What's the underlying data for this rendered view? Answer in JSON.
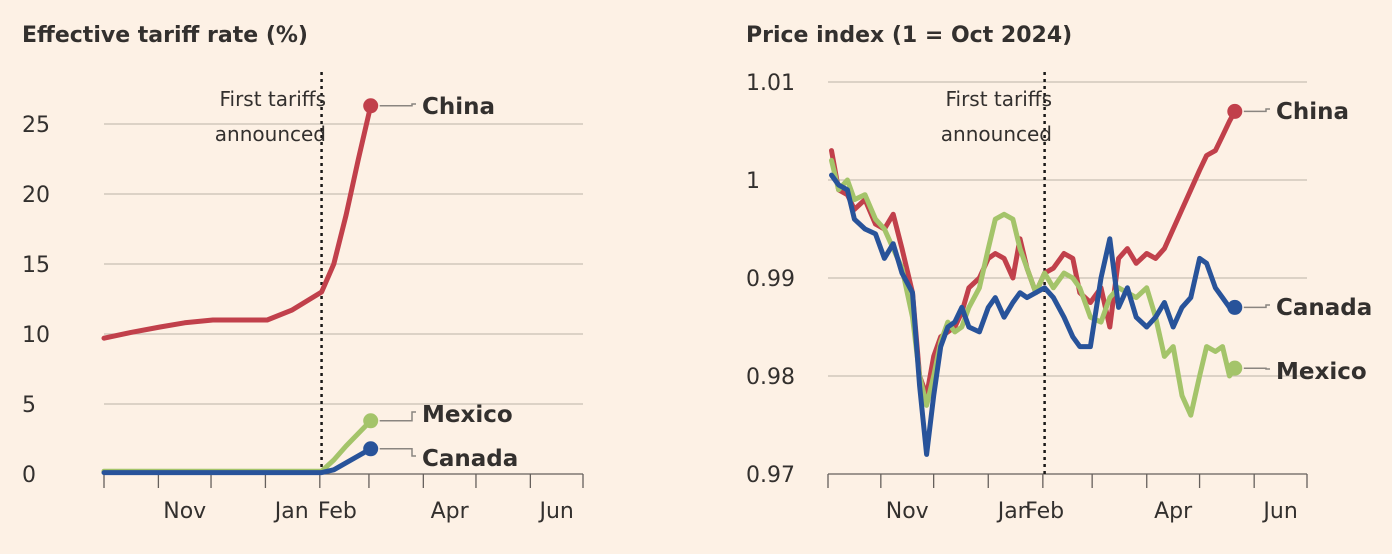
{
  "charts": {
    "left": {
      "title": "Effective tariff rate (%)",
      "annotation": [
        "First tariffs",
        "announced"
      ],
      "y_ticks": [
        "0",
        "5",
        "10",
        "15",
        "20",
        "25"
      ],
      "x_ticks": [
        "Nov",
        "Jan",
        "Feb",
        "Apr",
        "Jun"
      ]
    },
    "right": {
      "title": "Price index (1 = Oct 2024)",
      "annotation": [
        "First tariffs",
        "announced"
      ],
      "y_ticks": [
        "0.97",
        "0.98",
        "0.99",
        "1",
        "1.01"
      ],
      "x_ticks": [
        "Nov",
        "Jan",
        "Feb",
        "Apr",
        "Jun"
      ]
    }
  },
  "series_labels": {
    "china": "China",
    "mexico": "Mexico",
    "canada": "Canada"
  },
  "colors": {
    "china": "#c1404b",
    "mexico": "#a4c46a",
    "canada": "#28539a",
    "background": "#fdf1e5"
  },
  "chart_data": [
    {
      "type": "line",
      "title": "Effective tariff rate (%)",
      "x_unit": "month",
      "x_range": [
        "2024-09-30",
        "2025-06-30"
      ],
      "ylim": [
        0,
        26
      ],
      "y_ticks": [
        0,
        5,
        10,
        15,
        20,
        25
      ],
      "grid": true,
      "event": {
        "date": "2025-02-01",
        "label": "First tariffs announced"
      },
      "series": [
        {
          "name": "China",
          "color": "#c1404b",
          "x": [
            "2024-09-30",
            "2024-10-15",
            "2024-11-01",
            "2024-11-15",
            "2024-12-01",
            "2024-12-15",
            "2025-01-01",
            "2025-01-15",
            "2025-02-01",
            "2025-02-08",
            "2025-02-15",
            "2025-02-22",
            "2025-03-01"
          ],
          "y": [
            9.7,
            10.1,
            10.5,
            10.8,
            11.0,
            11.0,
            11.0,
            11.7,
            13.0,
            15.0,
            18.5,
            22.5,
            26.3
          ]
        },
        {
          "name": "Mexico",
          "color": "#a4c46a",
          "x": [
            "2024-09-30",
            "2025-02-01",
            "2025-02-08",
            "2025-02-15",
            "2025-02-22",
            "2025-03-01"
          ],
          "y": [
            0.2,
            0.2,
            1.0,
            2.0,
            2.9,
            3.8
          ]
        },
        {
          "name": "Canada",
          "color": "#28539a",
          "x": [
            "2024-09-30",
            "2025-02-01",
            "2025-02-08",
            "2025-02-15",
            "2025-02-22",
            "2025-03-01"
          ],
          "y": [
            0.1,
            0.1,
            0.3,
            0.8,
            1.3,
            1.8
          ]
        }
      ]
    },
    {
      "type": "line",
      "title": "Price index (1 = Oct 2024)",
      "x_unit": "month",
      "x_range": [
        "2024-10-01",
        "2025-06-30"
      ],
      "ylim": [
        0.97,
        1.01
      ],
      "y_ticks": [
        0.97,
        0.98,
        0.99,
        1.0,
        1.01
      ],
      "grid": true,
      "event": {
        "date": "2025-02-01",
        "label": "First tariffs announced"
      },
      "series": [
        {
          "name": "China",
          "color": "#c1404b",
          "x": [
            "2024-10-03",
            "2024-10-07",
            "2024-10-12",
            "2024-10-16",
            "2024-10-22",
            "2024-10-28",
            "2024-11-02",
            "2024-11-07",
            "2024-11-12",
            "2024-11-18",
            "2024-11-22",
            "2024-11-26",
            "2024-11-30",
            "2024-12-04",
            "2024-12-08",
            "2024-12-12",
            "2024-12-16",
            "2024-12-20",
            "2024-12-26",
            "2024-12-31",
            "2025-01-04",
            "2025-01-09",
            "2025-01-14",
            "2025-01-18",
            "2025-01-22",
            "2025-01-27",
            "2025-02-01",
            "2025-02-06",
            "2025-02-12",
            "2025-02-17",
            "2025-02-21",
            "2025-02-27",
            "2025-03-05",
            "2025-03-10",
            "2025-03-15",
            "2025-03-20",
            "2025-03-25",
            "2025-03-31",
            "2025-04-05",
            "2025-04-10",
            "2025-04-15",
            "2025-04-20",
            "2025-04-25",
            "2025-04-30",
            "2025-05-04",
            "2025-05-09",
            "2025-05-13",
            "2025-05-17",
            "2025-05-20"
          ],
          "y": [
            1.003,
            0.999,
            0.9985,
            0.997,
            0.998,
            0.9955,
            0.995,
            0.9965,
            0.993,
            0.9885,
            0.98,
            0.978,
            0.982,
            0.984,
            0.9845,
            0.985,
            0.9865,
            0.989,
            0.99,
            0.992,
            0.9925,
            0.992,
            0.99,
            0.994,
            0.991,
            0.9885,
            0.9905,
            0.991,
            0.9925,
            0.992,
            0.9885,
            0.9875,
            0.989,
            0.985,
            0.992,
            0.993,
            0.9915,
            0.9925,
            0.992,
            0.993,
            0.995,
            0.997,
            0.999,
            1.001,
            1.0025,
            1.003,
            1.0045,
            1.006,
            1.007
          ]
        },
        {
          "name": "Mexico",
          "color": "#a4c46a",
          "x": [
            "2024-10-03",
            "2024-10-07",
            "2024-10-12",
            "2024-10-16",
            "2024-10-22",
            "2024-10-28",
            "2024-11-02",
            "2024-11-07",
            "2024-11-12",
            "2024-11-18",
            "2024-11-22",
            "2024-11-26",
            "2024-11-30",
            "2024-12-04",
            "2024-12-08",
            "2024-12-12",
            "2024-12-16",
            "2024-12-20",
            "2024-12-26",
            "2024-12-31",
            "2025-01-04",
            "2025-01-09",
            "2025-01-14",
            "2025-01-18",
            "2025-01-22",
            "2025-01-27",
            "2025-02-01",
            "2025-02-06",
            "2025-02-12",
            "2025-02-17",
            "2025-02-21",
            "2025-02-27",
            "2025-03-05",
            "2025-03-10",
            "2025-03-15",
            "2025-03-20",
            "2025-03-25",
            "2025-03-31",
            "2025-04-05",
            "2025-04-10",
            "2025-04-15",
            "2025-04-20",
            "2025-04-25",
            "2025-04-30",
            "2025-05-04",
            "2025-05-09",
            "2025-05-13",
            "2025-05-17",
            "2025-05-20"
          ],
          "y": [
            1.002,
            0.999,
            1.0,
            0.998,
            0.9985,
            0.996,
            0.995,
            0.993,
            0.991,
            0.986,
            0.98,
            0.977,
            0.98,
            0.9835,
            0.9855,
            0.9845,
            0.985,
            0.987,
            0.989,
            0.993,
            0.996,
            0.9965,
            0.996,
            0.993,
            0.991,
            0.9885,
            0.9905,
            0.989,
            0.9905,
            0.99,
            0.989,
            0.986,
            0.9855,
            0.988,
            0.989,
            0.9885,
            0.988,
            0.989,
            0.986,
            0.982,
            0.983,
            0.978,
            0.976,
            0.98,
            0.983,
            0.9825,
            0.983,
            0.98,
            0.9808
          ]
        },
        {
          "name": "Canada",
          "color": "#28539a",
          "x": [
            "2024-10-03",
            "2024-10-07",
            "2024-10-12",
            "2024-10-16",
            "2024-10-22",
            "2024-10-28",
            "2024-11-02",
            "2024-11-07",
            "2024-11-12",
            "2024-11-18",
            "2024-11-22",
            "2024-11-26",
            "2024-11-30",
            "2024-12-04",
            "2024-12-08",
            "2024-12-12",
            "2024-12-16",
            "2024-12-20",
            "2024-12-26",
            "2024-12-31",
            "2025-01-04",
            "2025-01-09",
            "2025-01-14",
            "2025-01-18",
            "2025-01-22",
            "2025-01-27",
            "2025-02-01",
            "2025-02-06",
            "2025-02-12",
            "2025-02-17",
            "2025-02-21",
            "2025-02-27",
            "2025-03-05",
            "2025-03-10",
            "2025-03-15",
            "2025-03-20",
            "2025-03-25",
            "2025-03-31",
            "2025-04-05",
            "2025-04-10",
            "2025-04-15",
            "2025-04-20",
            "2025-04-25",
            "2025-04-30",
            "2025-05-04",
            "2025-05-09",
            "2025-05-13",
            "2025-05-17",
            "2025-05-20"
          ],
          "y": [
            1.0005,
            0.9995,
            0.999,
            0.996,
            0.995,
            0.9945,
            0.992,
            0.9935,
            0.9905,
            0.9885,
            0.979,
            0.972,
            0.978,
            0.983,
            0.985,
            0.9855,
            0.987,
            0.985,
            0.9845,
            0.987,
            0.988,
            0.986,
            0.9875,
            0.9885,
            0.988,
            0.9885,
            0.989,
            0.988,
            0.986,
            0.984,
            0.983,
            0.983,
            0.99,
            0.994,
            0.987,
            0.989,
            0.986,
            0.985,
            0.986,
            0.9875,
            0.985,
            0.987,
            0.988,
            0.992,
            0.9915,
            0.989,
            0.988,
            0.987,
            0.987
          ]
        }
      ]
    }
  ]
}
